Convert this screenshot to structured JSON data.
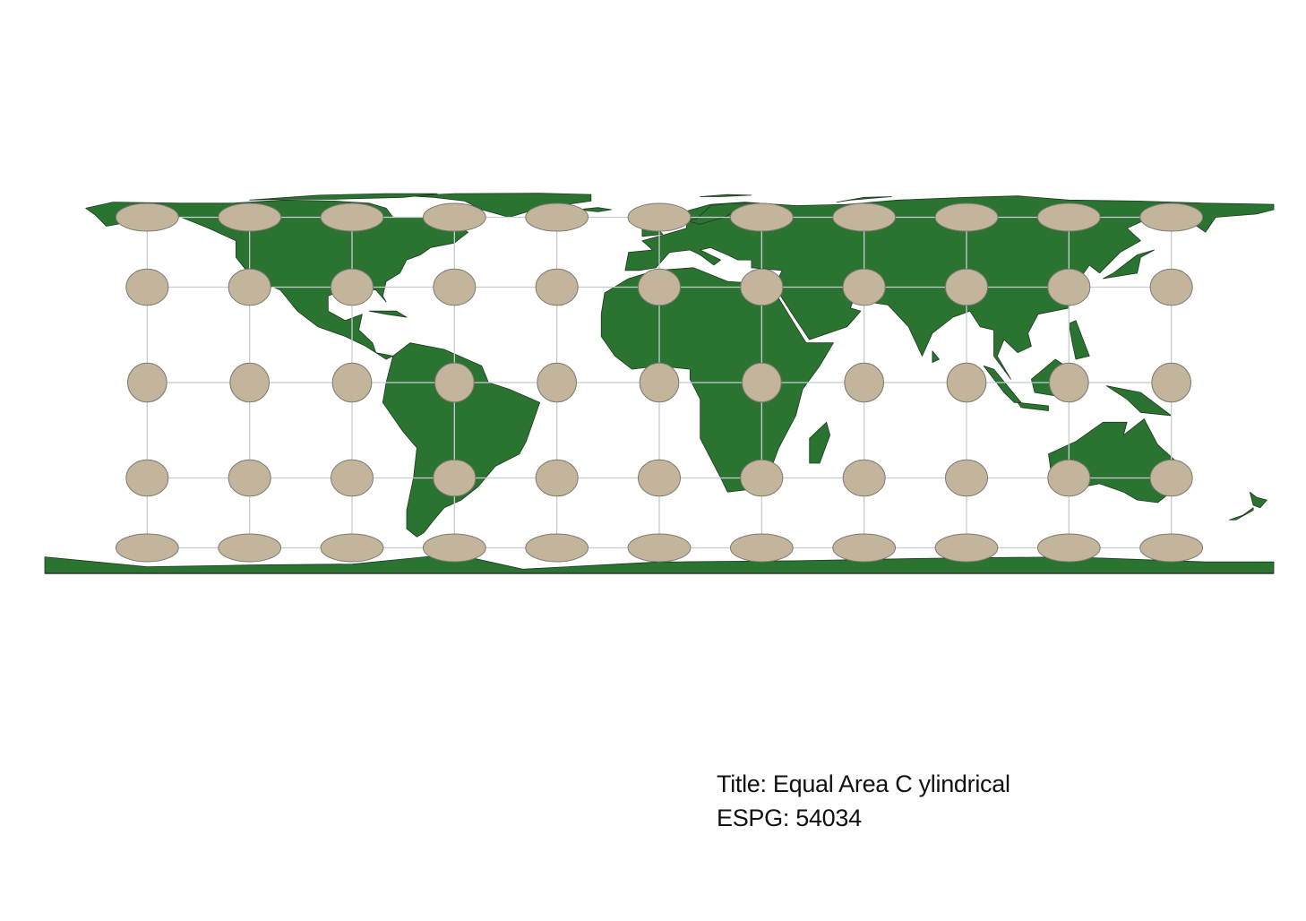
{
  "map": {
    "projection_title": "Title: Equal Area C ylindrical",
    "projection_code": "ESPG: 54034",
    "colors": {
      "land": "#2a7330",
      "borders": "#1f3a22",
      "graticule": "#c5cdd3",
      "ellipse_fill": "#c2b59b",
      "ellipse_stroke": "#7f7a70",
      "background": "#ffffff"
    },
    "graticule": {
      "longitudes": [
        -150,
        -120,
        -90,
        -60,
        -30,
        0,
        30,
        60,
        90,
        120,
        150
      ],
      "latitudes": [
        60,
        30,
        0,
        -30,
        -60
      ]
    },
    "tissot_indicatrix": {
      "longitudes": [
        -150,
        -120,
        -90,
        -60,
        -30,
        0,
        30,
        60,
        90,
        120,
        150
      ],
      "latitudes": [
        60,
        30,
        0,
        -30,
        -60
      ]
    }
  }
}
